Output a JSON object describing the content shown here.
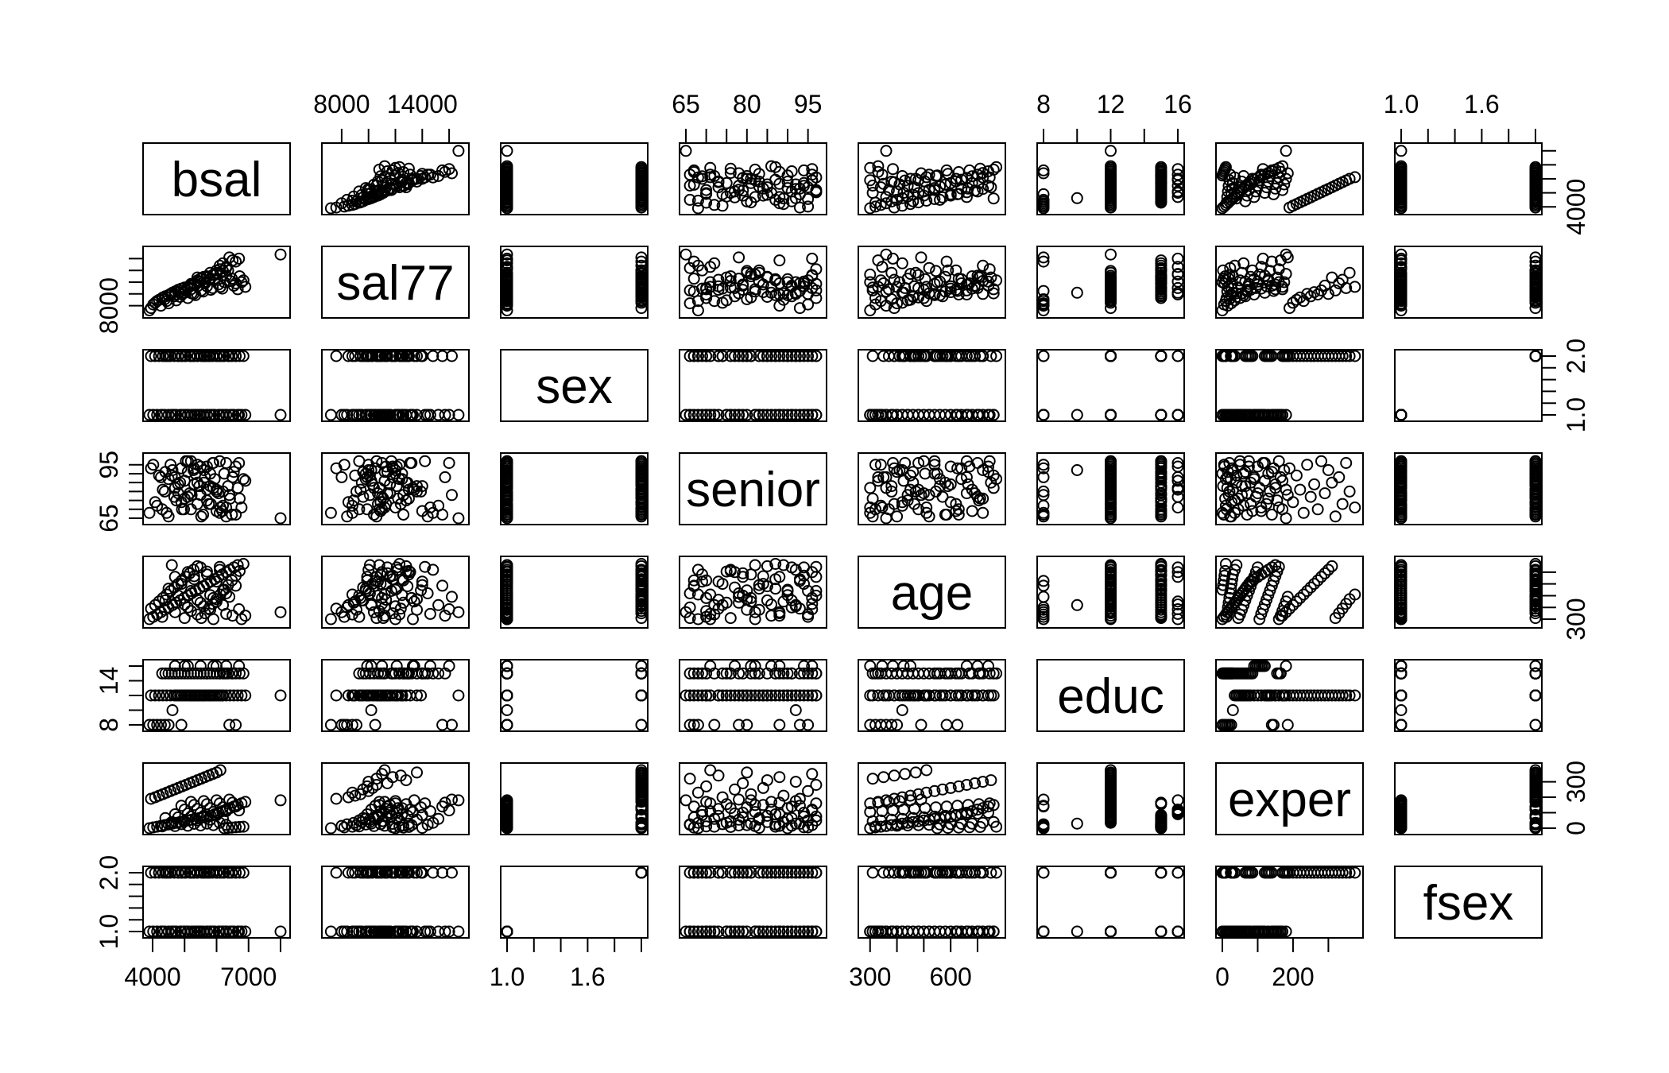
{
  "chart_data": {
    "type": "scatter",
    "subtype": "scatterplot-matrix",
    "title": "",
    "variables": [
      "bsal",
      "sal77",
      "sex",
      "senior",
      "age",
      "educ",
      "exper",
      "fsex"
    ],
    "ranges": {
      "bsal": [
        3900,
        8100
      ],
      "sal77": [
        7000,
        17000
      ],
      "sex": [
        1,
        2
      ],
      "senior": [
        65,
        98
      ],
      "age": [
        280,
        780
      ],
      "educ": [
        8,
        16
      ],
      "exper": [
        0,
        380
      ],
      "fsex": [
        1,
        2
      ]
    },
    "axes": {
      "top": [
        {
          "column": 1,
          "ticks": [
            8000,
            10000,
            12000,
            14000,
            16000
          ],
          "labels": [
            {
              "value": 8000,
              "text": "8000"
            },
            {
              "value": 14000,
              "text": "14000"
            }
          ]
        },
        {
          "column": 3,
          "ticks": [
            65,
            70,
            75,
            80,
            85,
            90,
            95
          ],
          "labels": [
            {
              "value": 65,
              "text": "65"
            },
            {
              "value": 80,
              "text": "80"
            },
            {
              "value": 95,
              "text": "95"
            }
          ]
        },
        {
          "column": 5,
          "ticks": [
            8,
            10,
            12,
            14,
            16
          ],
          "labels": [
            {
              "value": 8,
              "text": "8"
            },
            {
              "value": 12,
              "text": "12"
            },
            {
              "value": 16,
              "text": "16"
            }
          ]
        },
        {
          "column": 7,
          "ticks": [
            1.0,
            1.2,
            1.4,
            1.6,
            1.8,
            2.0
          ],
          "labels": [
            {
              "value": 1.0,
              "text": "1.0"
            },
            {
              "value": 1.6,
              "text": "1.6"
            }
          ]
        }
      ],
      "bottom": [
        {
          "column": 0,
          "ticks": [
            4000,
            5000,
            6000,
            7000,
            8000
          ],
          "labels": [
            {
              "value": 4000,
              "text": "4000"
            },
            {
              "value": 7000,
              "text": "7000"
            }
          ]
        },
        {
          "column": 2,
          "ticks": [
            1.0,
            1.2,
            1.4,
            1.6,
            1.8,
            2.0
          ],
          "labels": [
            {
              "value": 1.0,
              "text": "1.0"
            },
            {
              "value": 1.6,
              "text": "1.6"
            }
          ]
        },
        {
          "column": 4,
          "ticks": [
            300,
            400,
            500,
            600,
            700
          ],
          "labels": [
            {
              "value": 300,
              "text": "300"
            },
            {
              "value": 600,
              "text": "600"
            }
          ]
        },
        {
          "column": 6,
          "ticks": [
            0,
            100,
            200,
            300
          ],
          "labels": [
            {
              "value": 0,
              "text": "0"
            },
            {
              "value": 200,
              "text": "200"
            }
          ]
        }
      ],
      "left": [
        {
          "row": 1,
          "ticks": [
            8000,
            10000,
            12000,
            14000,
            16000
          ],
          "labels": [
            {
              "value": 8000,
              "text": "8000"
            }
          ]
        },
        {
          "row": 3,
          "ticks": [
            65,
            70,
            75,
            80,
            85,
            90,
            95
          ],
          "labels": [
            {
              "value": 65,
              "text": "65"
            },
            {
              "value": 95,
              "text": "95"
            }
          ]
        },
        {
          "row": 5,
          "ticks": [
            8,
            10,
            12,
            14,
            16
          ],
          "labels": [
            {
              "value": 8,
              "text": "8"
            },
            {
              "value": 14,
              "text": "14"
            }
          ]
        },
        {
          "row": 7,
          "ticks": [
            1.0,
            1.2,
            1.4,
            1.6,
            1.8,
            2.0
          ],
          "labels": [
            {
              "value": 1.0,
              "text": "1.0"
            },
            {
              "value": 2.0,
              "text": "2.0"
            }
          ]
        }
      ],
      "right": [
        {
          "row": 0,
          "ticks": [
            4000,
            5000,
            6000,
            7000,
            8000
          ],
          "labels": [
            {
              "value": 4000,
              "text": "4000"
            }
          ]
        },
        {
          "row": 2,
          "ticks": [
            1.0,
            1.2,
            1.4,
            1.6,
            1.8,
            2.0
          ],
          "labels": [
            {
              "value": 1.0,
              "text": "1.0"
            },
            {
              "value": 2.0,
              "text": "2.0"
            }
          ]
        },
        {
          "row": 4,
          "ticks": [
            300,
            400,
            500,
            600,
            700
          ],
          "labels": [
            {
              "value": 300,
              "text": "300"
            }
          ]
        },
        {
          "row": 6,
          "ticks": [
            0,
            100,
            200,
            300
          ],
          "labels": [
            {
              "value": 0,
              "text": "0"
            },
            {
              "value": 300,
              "text": "300"
            }
          ]
        }
      ]
    },
    "observations": {
      "bsal": [
        3900,
        4020,
        4140,
        4260,
        4380,
        4500,
        4620,
        4740,
        4860,
        4980,
        5100,
        5220,
        5340,
        5460,
        5580,
        5700,
        5820,
        5940,
        6060,
        6180,
        6300,
        6420,
        6540,
        6660,
        6780,
        6900,
        8000,
        3950,
        4080,
        4200,
        4320,
        4440,
        4560,
        4680,
        4800,
        4920,
        5040,
        5160,
        5280,
        5400,
        5520,
        5640,
        5760,
        5880,
        6000,
        6120,
        6240,
        6360,
        6480,
        6600,
        6720,
        6840,
        4300,
        4700,
        5100,
        5500,
        5900,
        6300,
        4500,
        4900,
        5300,
        5700,
        6100,
        4600,
        5000,
        5400,
        5800,
        6200,
        4400,
        4800,
        5200,
        5600,
        6000,
        4700,
        5100,
        5500,
        5900,
        6300,
        6700,
        5000,
        5400,
        5800,
        6200,
        6600,
        4900,
        5300,
        5700,
        6100,
        6500,
        5200,
        5600,
        6000,
        6400
      ],
      "sal77": [
        7200,
        8200,
        8800,
        8000,
        9100,
        8400,
        10200,
        8900,
        9500,
        11000,
        9300,
        10100,
        9800,
        12100,
        10400,
        11300,
        10700,
        12500,
        11600,
        10900,
        13100,
        12200,
        11400,
        10800,
        12000,
        11200,
        16700,
        7600,
        8500,
        9000,
        9400,
        8800,
        10000,
        9600,
        10300,
        9900,
        10600,
        11400,
        10000,
        12800,
        10600,
        11800,
        12400,
        11000,
        13600,
        11200,
        12000,
        14000,
        12600,
        11800,
        13000,
        12300,
        9300,
        10400,
        11200,
        12600,
        13200,
        14400,
        9800,
        10900,
        11800,
        13000,
        14800,
        10100,
        11100,
        12300,
        13600,
        15200,
        9600,
        10700,
        11700,
        12900,
        14000,
        9900,
        11000,
        12100,
        13300,
        14600,
        16000,
        10200,
        11300,
        12500,
        13900,
        15500,
        10500,
        11600,
        12800,
        14200,
        15700,
        10800,
        12000,
        13400,
        16200
      ],
      "sex": [
        1,
        1,
        1,
        1,
        1,
        1,
        1,
        1,
        1,
        1,
        1,
        1,
        1,
        1,
        1,
        1,
        1,
        1,
        1,
        1,
        1,
        1,
        1,
        1,
        1,
        1,
        1,
        2,
        2,
        2,
        2,
        2,
        2,
        2,
        2,
        2,
        2,
        2,
        2,
        2,
        2,
        2,
        2,
        2,
        2,
        2,
        2,
        2,
        2,
        2,
        2,
        2,
        1,
        1,
        1,
        1,
        1,
        1,
        2,
        2,
        2,
        2,
        2,
        1,
        1,
        1,
        1,
        1,
        2,
        2,
        2,
        2,
        2,
        1,
        1,
        1,
        1,
        1,
        1,
        2,
        2,
        2,
        2,
        2,
        1,
        1,
        1,
        1,
        1,
        2,
        2,
        2,
        2
      ],
      "senior": [
        68,
        95,
        72,
        88,
        80,
        66,
        92,
        75,
        85,
        70,
        97,
        78,
        90,
        83,
        67,
        94,
        73,
        87,
        79,
        69,
        96,
        76,
        91,
        82,
        71,
        86,
        65,
        93,
        74,
        89,
        81,
        68,
        95,
        77,
        84,
        70,
        97,
        79,
        92,
        85,
        66,
        88,
        73,
        96,
        80,
        71,
        90,
        83,
        67,
        94,
        76,
        87,
        70,
        82,
        91,
        78,
        96,
        66,
        87,
        74,
        93,
        81,
        68,
        89,
        76,
        95,
        83,
        72,
        91,
        79,
        97,
        85,
        69,
        88,
        77,
        94,
        82,
        71,
        96,
        86,
        73,
        90,
        80,
        67,
        93,
        84,
        75,
        97,
        88,
        70,
        92,
        81,
        78
      ],
      "age": [
        300,
        320,
        340,
        360,
        380,
        400,
        420,
        440,
        460,
        480,
        500,
        520,
        540,
        560,
        580,
        600,
        620,
        640,
        660,
        680,
        700,
        720,
        740,
        760,
        300,
        330,
        360,
        390,
        420,
        450,
        480,
        510,
        540,
        570,
        600,
        630,
        660,
        690,
        720,
        750,
        310,
        350,
        390,
        430,
        470,
        510,
        550,
        590,
        630,
        670,
        710,
        770,
        320,
        360,
        400,
        440,
        480,
        520,
        560,
        600,
        640,
        680,
        720,
        760,
        310,
        340,
        380,
        420,
        460,
        500,
        540,
        580,
        620,
        660,
        700,
        740,
        300,
        345,
        385,
        425,
        465,
        505,
        545,
        585,
        625,
        665,
        705,
        745,
        330,
        370,
        410,
        450,
        490
      ],
      "educ": [
        8,
        8,
        8,
        8,
        8,
        8,
        10,
        12,
        12,
        12,
        12,
        12,
        12,
        12,
        12,
        12,
        12,
        12,
        12,
        12,
        12,
        12,
        12,
        12,
        12,
        12,
        12,
        12,
        12,
        12,
        12,
        12,
        12,
        12,
        12,
        12,
        12,
        12,
        12,
        12,
        12,
        12,
        12,
        12,
        12,
        12,
        15,
        15,
        15,
        15,
        15,
        15,
        15,
        15,
        15,
        15,
        15,
        15,
        15,
        15,
        15,
        15,
        15,
        15,
        15,
        15,
        15,
        15,
        15,
        15,
        15,
        15,
        15,
        16,
        16,
        16,
        16,
        16,
        16,
        16,
        12,
        12,
        12,
        8,
        8,
        12,
        15,
        15,
        15,
        12,
        12,
        16,
        8
      ],
      "exper": [
        0,
        5,
        10,
        15,
        20,
        25,
        30,
        35,
        40,
        45,
        50,
        55,
        60,
        65,
        70,
        75,
        80,
        90,
        100,
        110,
        120,
        130,
        140,
        150,
        160,
        170,
        180,
        190,
        200,
        210,
        220,
        230,
        240,
        250,
        260,
        270,
        280,
        290,
        300,
        310,
        320,
        330,
        340,
        350,
        360,
        375,
        0,
        2,
        4,
        6,
        8,
        10,
        12,
        14,
        16,
        18,
        20,
        22,
        24,
        26,
        28,
        30,
        35,
        40,
        45,
        50,
        55,
        60,
        65,
        70,
        75,
        80,
        85,
        90,
        95,
        100,
        105,
        110,
        115,
        120,
        125,
        130,
        135,
        140,
        145,
        150,
        155,
        160,
        165,
        170,
        175,
        180,
        185
      ],
      "fsex": [
        1,
        1,
        1,
        1,
        1,
        1,
        1,
        1,
        1,
        1,
        1,
        1,
        1,
        1,
        1,
        1,
        1,
        1,
        1,
        1,
        1,
        1,
        1,
        1,
        1,
        1,
        1,
        2,
        2,
        2,
        2,
        2,
        2,
        2,
        2,
        2,
        2,
        2,
        2,
        2,
        2,
        2,
        2,
        2,
        2,
        2,
        2,
        2,
        2,
        2,
        2,
        2,
        1,
        1,
        1,
        1,
        1,
        1,
        2,
        2,
        2,
        2,
        2,
        1,
        1,
        1,
        1,
        1,
        2,
        2,
        2,
        2,
        2,
        1,
        1,
        1,
        1,
        1,
        1,
        2,
        2,
        2,
        2,
        2,
        1,
        1,
        1,
        1,
        1,
        2,
        2,
        2,
        2
      ]
    },
    "grid": false,
    "legend": "none"
  }
}
